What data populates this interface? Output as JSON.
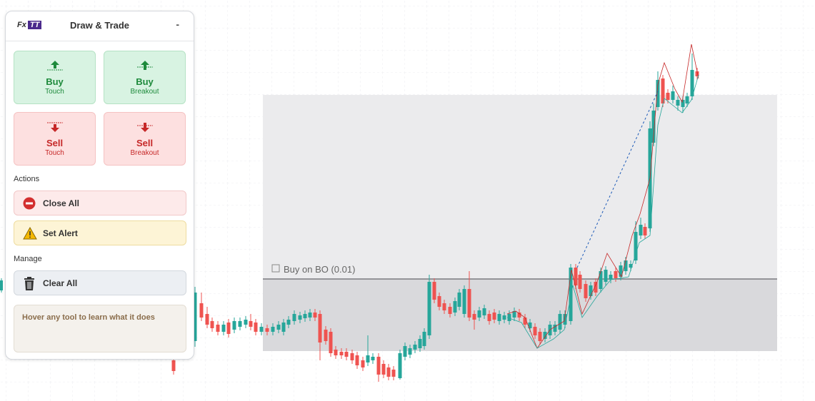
{
  "panel": {
    "logo": {
      "prefix": "Fx",
      "mark": "TT"
    },
    "title": "Draw & Trade",
    "minimize": "-",
    "trade_buttons": [
      {
        "label": "Buy",
        "sub": "Touch"
      },
      {
        "label": "Buy",
        "sub": "Breakout"
      },
      {
        "label": "Sell",
        "sub": "Touch"
      },
      {
        "label": "Sell",
        "sub": "Breakout"
      }
    ],
    "actions": {
      "heading": "Actions",
      "items": [
        "Close All",
        "Set Alert"
      ]
    },
    "manage": {
      "heading": "Manage",
      "items": [
        "Clear All"
      ]
    },
    "hint": "Hover any tool to learn what it does"
  },
  "chart": {
    "order_label": "Buy on BO (0.01)"
  }
}
